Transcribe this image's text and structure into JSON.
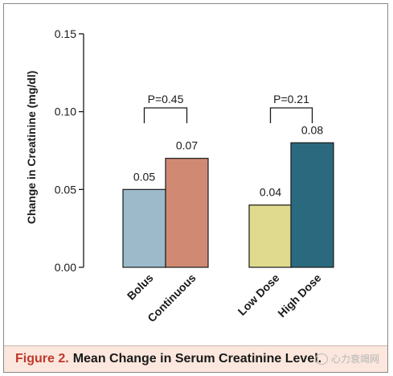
{
  "caption": {
    "figure_number": "Figure 2.",
    "title": "Mean Change in Serum Creatinine Level."
  },
  "watermark": {
    "text": "心力衰竭网",
    "icon": "wechat-logo-icon"
  },
  "colors": {
    "bolus": "#9dbacb",
    "continuous": "#d08a74",
    "low_dose": "#e0da8e",
    "high_dose": "#2b6a7e",
    "axis": "#1a1a1a"
  },
  "chart_data": {
    "type": "bar",
    "title": "",
    "ylabel": "Change in Creatinine (mg/dl)",
    "xlabel": "",
    "ylim": [
      0,
      0.15
    ],
    "yticks": [
      "0.00",
      "0.05",
      "0.10",
      "0.15"
    ],
    "grid": false,
    "categories": [
      "Bolus",
      "Continuous",
      "Low Dose",
      "High Dose"
    ],
    "values": [
      0.05,
      0.07,
      0.04,
      0.08
    ],
    "value_labels": [
      "0.05",
      "0.07",
      "0.04",
      "0.08"
    ],
    "groups": [
      {
        "members": [
          "Bolus",
          "Continuous"
        ],
        "p_value": "P=0.45"
      },
      {
        "members": [
          "Low Dose",
          "High Dose"
        ],
        "p_value": "P=0.21"
      }
    ]
  }
}
